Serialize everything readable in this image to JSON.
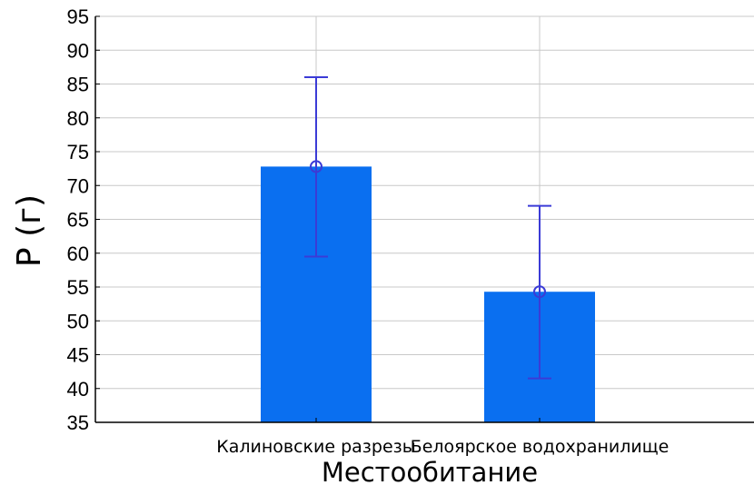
{
  "chart_data": {
    "type": "bar",
    "title": "",
    "xlabel": "Местообитание",
    "ylabel": "P (г)",
    "categories": [
      "Калиновские разрезы",
      "Белоярское водохранилище"
    ],
    "series": [
      {
        "values": [
          72.8,
          54.3
        ],
        "error_low": [
          59.5,
          41.5
        ],
        "error_high": [
          86.0,
          67.0
        ]
      }
    ],
    "ylim": [
      35,
      95
    ],
    "yticks": [
      35,
      40,
      45,
      50,
      55,
      60,
      65,
      70,
      75,
      80,
      85,
      90,
      95
    ],
    "grid": true,
    "bar_color": "#0a6ff0",
    "error_color": "#3b3bd6",
    "grid_color": "#c8c8c8",
    "axis_color": "#000000"
  }
}
